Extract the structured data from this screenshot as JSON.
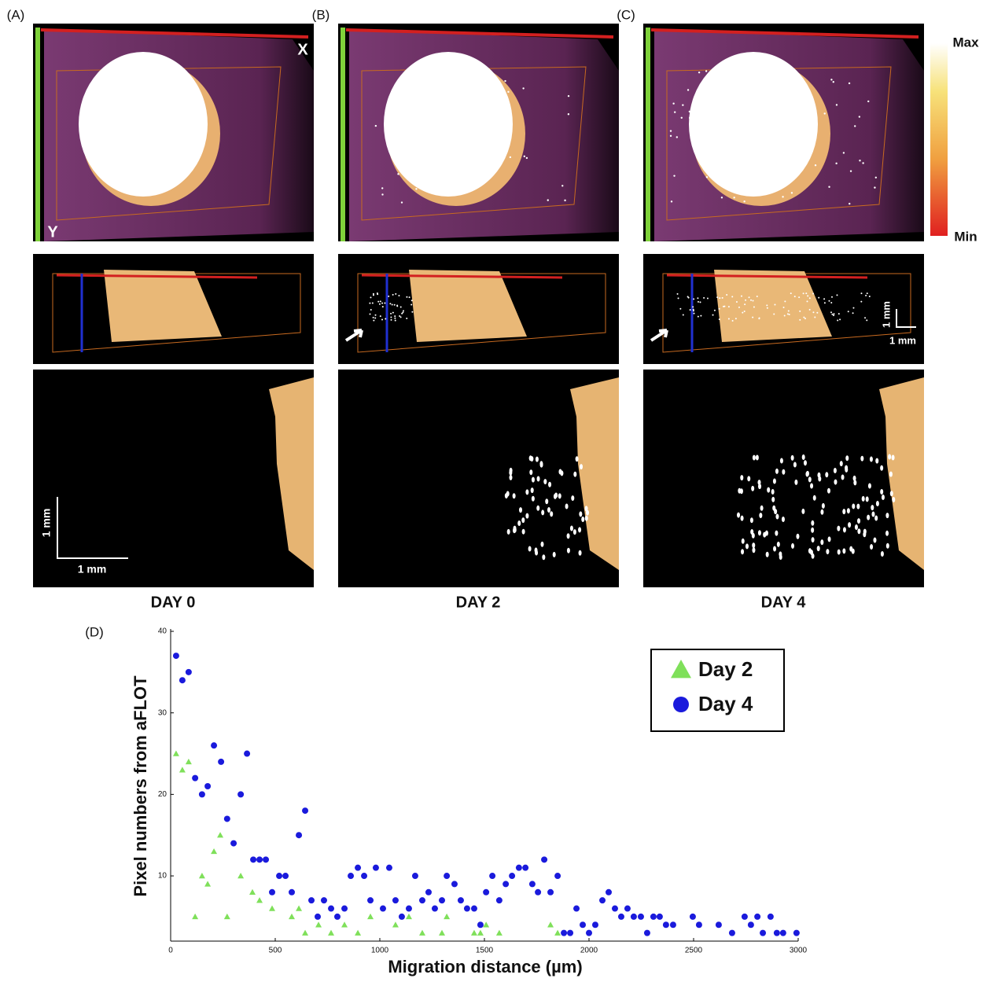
{
  "panels": [
    {
      "label": "(A)",
      "day": "DAY 0"
    },
    {
      "label": "(B)",
      "day": "DAY 2"
    },
    {
      "label": "(C)",
      "day": "DAY 4"
    }
  ],
  "image_labels": {
    "x_axis": "X",
    "y_axis": "Y",
    "scale_a_vertical": "1 mm",
    "scale_a_horizontal": "1 mm",
    "scale_c_vertical": "1 mm",
    "scale_c_horizontal": "1 mm"
  },
  "colorbar": {
    "max": "Max",
    "min": "Min"
  },
  "chart_data": {
    "type": "scatter",
    "panel_label": "(D)",
    "x_label": "Migration distance (µm)",
    "y_label": "Pixel numbers  from aFLOT",
    "xlim": [
      0,
      3000
    ],
    "xticks": [
      0,
      500,
      1000,
      1500,
      2000,
      2500,
      3000
    ],
    "ylim": [
      2,
      40
    ],
    "yticks": [
      10,
      20,
      30,
      40
    ],
    "legend": "upper right",
    "series": [
      {
        "name": "Day 2",
        "color": "#7fe05a",
        "marker": "triangle",
        "x": [
          26,
          56,
          86,
          117,
          150,
          177,
          207,
          237,
          270,
          335,
          391,
          425,
          485,
          579,
          613,
          643,
          707,
          767,
          831,
          895,
          955,
          1075,
          1139,
          1203,
          1297,
          1320,
          1451,
          1481,
          1508,
          1571,
          1816,
          1850
        ],
        "values": [
          25,
          23,
          24,
          5,
          10,
          9,
          13,
          15,
          5,
          10,
          8,
          7,
          6,
          5,
          6,
          3,
          4,
          3,
          4,
          3,
          5,
          4,
          5,
          3,
          3,
          5,
          3,
          3,
          4,
          3,
          4,
          3
        ]
      },
      {
        "name": "Day 4",
        "color": "#1a1adc",
        "marker": "circle",
        "x": [
          26,
          56,
          86,
          117,
          150,
          177,
          207,
          241,
          270,
          301,
          335,
          365,
          395,
          425,
          455,
          485,
          519,
          549,
          579,
          613,
          643,
          673,
          703,
          733,
          767,
          797,
          831,
          861,
          895,
          925,
          955,
          981,
          1015,
          1045,
          1075,
          1105,
          1139,
          1169,
          1203,
          1233,
          1263,
          1297,
          1320,
          1357,
          1387,
          1417,
          1451,
          1481,
          1508,
          1538,
          1571,
          1602,
          1632,
          1665,
          1696,
          1729,
          1756,
          1786,
          1816,
          1850,
          1880,
          1910,
          1940,
          1970,
          2000,
          2030,
          2064,
          2094,
          2124,
          2154,
          2184,
          2214,
          2248,
          2278,
          2308,
          2338,
          2368,
          2402,
          2496,
          2526,
          2620,
          2684,
          2744,
          2774,
          2805,
          2831,
          2868,
          2898,
          2928,
          2992
        ],
        "values": [
          37,
          34,
          35,
          22,
          20,
          21,
          26,
          24,
          17,
          14,
          20,
          25,
          12,
          12,
          12,
          8,
          10,
          10,
          8,
          15,
          18,
          7,
          5,
          7,
          6,
          5,
          6,
          10,
          11,
          10,
          7,
          11,
          6,
          11,
          7,
          5,
          6,
          10,
          7,
          8,
          6,
          7,
          10,
          9,
          7,
          6,
          6,
          4,
          8,
          10,
          7,
          9,
          10,
          11,
          11,
          9,
          8,
          12,
          8,
          10,
          3,
          3,
          6,
          4,
          3,
          4,
          7,
          8,
          6,
          5,
          6,
          5,
          5,
          3,
          5,
          5,
          4,
          4,
          5,
          4,
          4,
          3,
          5,
          4,
          5,
          3,
          5,
          3,
          3,
          3
        ]
      }
    ]
  }
}
